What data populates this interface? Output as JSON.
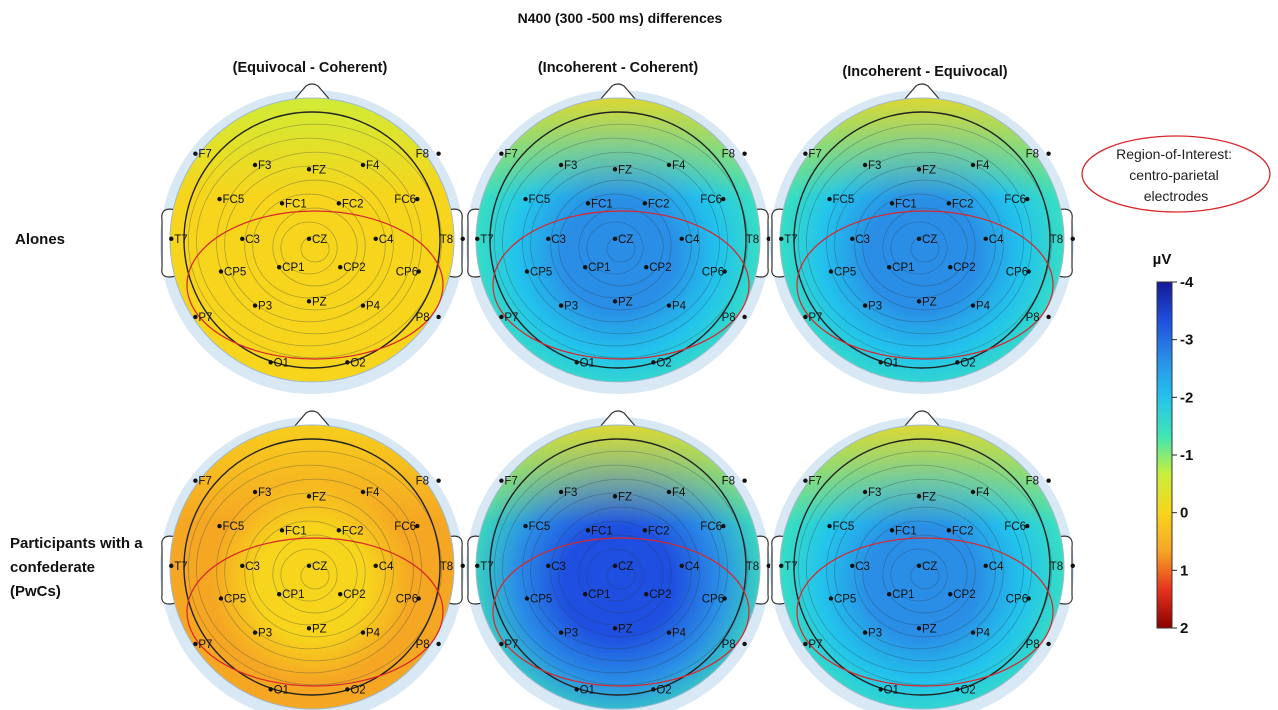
{
  "title": "N400 (300 -500 ms) differences",
  "columns": [
    "(Equivocal - Coherent)",
    "(Incoherent - Coherent)",
    "(Incoherent - Equivocal)"
  ],
  "rows": [
    {
      "lines": [
        "Alones"
      ]
    },
    {
      "lines": [
        "Participants with a",
        "confederate",
        "(PwCs)"
      ]
    }
  ],
  "roi_label": {
    "lines": [
      "Region-of-Interest:",
      "centro-parietal",
      "electrodes"
    ]
  },
  "colorbar": {
    "unit": "µV",
    "ticks": [
      "-4",
      "-3",
      "-2",
      "-1",
      "0",
      "1",
      "2"
    ],
    "range": [
      2,
      -4
    ],
    "colors": [
      "#8b0000",
      "#e8321e",
      "#f5a623",
      "#f7d51c",
      "#c9ef3a",
      "#3ee6b5",
      "#22c3ec",
      "#2a8ee6",
      "#1f4fe0",
      "#141a96"
    ]
  },
  "electrodes": [
    "F7",
    "F3",
    "FZ",
    "F4",
    "F8",
    "FC5",
    "FC1",
    "FC2",
    "FC6",
    "T7",
    "C3",
    "CZ",
    "C4",
    "T8",
    "CP5",
    "CP1",
    "CP2",
    "CP6",
    "P7",
    "P3",
    "PZ",
    "P4",
    "P8",
    "O1",
    "O2"
  ],
  "topomaps": [
    {
      "row": 0,
      "col": 0,
      "center_uV": 0.3,
      "edge_uV": 0.3,
      "frontal_uV": -0.4
    },
    {
      "row": 0,
      "col": 1,
      "center_uV": -2.5,
      "edge_uV": -1.6,
      "frontal_uV": -0.3
    },
    {
      "row": 0,
      "col": 2,
      "center_uV": -2.6,
      "edge_uV": -1.5,
      "frontal_uV": -0.2
    },
    {
      "row": 1,
      "col": 0,
      "center_uV": 0.2,
      "edge_uV": 0.6,
      "frontal_uV": 0.2
    },
    {
      "row": 1,
      "col": 1,
      "center_uV": -3.2,
      "edge_uV": -1.5,
      "frontal_uV": -0.3
    },
    {
      "row": 1,
      "col": 2,
      "center_uV": -2.9,
      "edge_uV": -1.4,
      "frontal_uV": -0.2
    }
  ]
}
